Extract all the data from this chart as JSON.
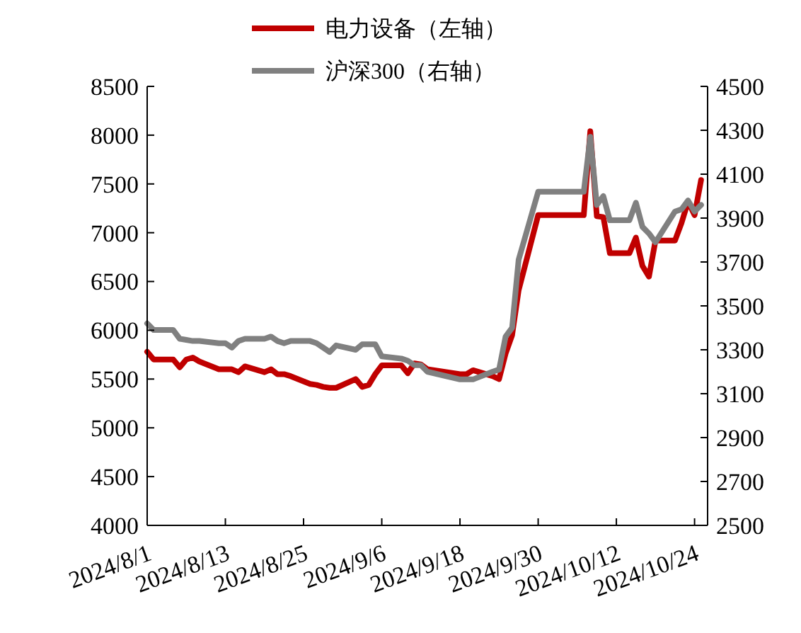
{
  "chart_data": {
    "type": "line",
    "x": [
      "2024-08-01",
      "2024-08-02",
      "2024-08-05",
      "2024-08-06",
      "2024-08-07",
      "2024-08-08",
      "2024-08-09",
      "2024-08-12",
      "2024-08-13",
      "2024-08-14",
      "2024-08-15",
      "2024-08-16",
      "2024-08-19",
      "2024-08-20",
      "2024-08-21",
      "2024-08-22",
      "2024-08-23",
      "2024-08-26",
      "2024-08-27",
      "2024-08-28",
      "2024-08-29",
      "2024-08-30",
      "2024-09-02",
      "2024-09-03",
      "2024-09-04",
      "2024-09-05",
      "2024-09-06",
      "2024-09-09",
      "2024-09-10",
      "2024-09-11",
      "2024-09-12",
      "2024-09-13",
      "2024-09-18",
      "2024-09-19",
      "2024-09-20",
      "2024-09-23",
      "2024-09-24",
      "2024-09-25",
      "2024-09-26",
      "2024-09-27",
      "2024-09-30",
      "2024-10-07",
      "2024-10-08",
      "2024-10-09",
      "2024-10-10",
      "2024-10-11",
      "2024-10-14",
      "2024-10-15",
      "2024-10-16",
      "2024-10-17",
      "2024-10-18",
      "2024-10-21",
      "2024-10-22",
      "2024-10-23",
      "2024-10-24",
      "2024-10-25"
    ],
    "series": [
      {
        "name": "电力设备（左轴）",
        "color": "#c00000",
        "values": [
          5780,
          5700,
          5700,
          5620,
          5700,
          5720,
          5680,
          5600,
          5600,
          5600,
          5570,
          5630,
          5570,
          5600,
          5550,
          5550,
          5530,
          5450,
          5440,
          5420,
          5410,
          5410,
          5500,
          5420,
          5440,
          5550,
          5640,
          5640,
          5560,
          5660,
          5650,
          5600,
          5550,
          5550,
          5590,
          5530,
          5500,
          5760,
          5950,
          6410,
          7180,
          7180,
          8040,
          7170,
          7160,
          6790,
          6790,
          6950,
          6660,
          6550,
          6920,
          6920,
          7100,
          7320,
          7180,
          7540
        ]
      },
      {
        "name": "沪深300（右轴）",
        "color": "#808080",
        "axis": "y2",
        "values": [
          3420,
          3390,
          3390,
          3350,
          3345,
          3340,
          3340,
          3330,
          3330,
          3310,
          3340,
          3350,
          3350,
          3360,
          3340,
          3330,
          3340,
          3340,
          3330,
          3310,
          3290,
          3320,
          3300,
          3325,
          3325,
          3325,
          3270,
          3260,
          3250,
          3230,
          3230,
          3200,
          3165,
          3165,
          3165,
          3200,
          3210,
          3360,
          3400,
          3710,
          4020,
          4020,
          4270,
          3960,
          4000,
          3890,
          3890,
          3970,
          3860,
          3830,
          3790,
          3930,
          3940,
          3980,
          3930,
          3960
        ]
      }
    ],
    "xlim": [
      "2024-08-01",
      "2024-10-26"
    ],
    "xticks": [
      {
        "value": "2024-08-01",
        "label": "2024/8/1"
      },
      {
        "value": "2024-08-13",
        "label": "2024/8/13"
      },
      {
        "value": "2024-08-25",
        "label": "2024/8/25"
      },
      {
        "value": "2024-09-06",
        "label": "2024/9/6"
      },
      {
        "value": "2024-09-18",
        "label": "2024/9/18"
      },
      {
        "value": "2024-09-30",
        "label": "2024/9/30"
      },
      {
        "value": "2024-10-12",
        "label": "2024/10/12"
      },
      {
        "value": "2024-10-24",
        "label": "2024/10/24"
      }
    ],
    "ylim": [
      4000,
      8500
    ],
    "yticks": [
      4000,
      4500,
      5000,
      5500,
      6000,
      6500,
      7000,
      7500,
      8000,
      8500
    ],
    "y2lim": [
      2500,
      4500
    ],
    "y2ticks": [
      2500,
      2700,
      2900,
      3100,
      3300,
      3500,
      3700,
      3900,
      4100,
      4300,
      4500
    ],
    "legend": "top",
    "grid": false,
    "marker": "none",
    "line_style": "solid"
  }
}
